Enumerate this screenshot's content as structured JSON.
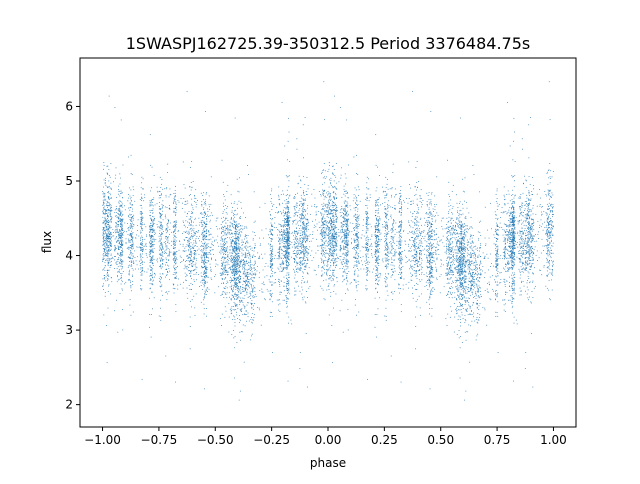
{
  "chart_data": {
    "type": "scatter",
    "title": "1SWASPJ162725.39-350312.5 Period 3376484.75s",
    "xlabel": "phase",
    "ylabel": "flux",
    "xlim": [
      -1.1,
      1.1
    ],
    "ylim": [
      1.7,
      6.65
    ],
    "x_ticks": [
      -1.0,
      -0.75,
      -0.5,
      -0.25,
      0.0,
      0.25,
      0.5,
      0.75,
      1.0
    ],
    "x_tick_labels": [
      "−1.00",
      "−0.75",
      "−0.50",
      "−0.25",
      "0.00",
      "0.25",
      "0.50",
      "0.75",
      "1.00"
    ],
    "y_ticks": [
      2,
      3,
      4,
      5,
      6
    ],
    "y_tick_labels": [
      "2",
      "3",
      "4",
      "5",
      "6"
    ],
    "grid": false,
    "marker_color": "#1f77b4",
    "series": [
      {
        "phase_range": [
          -1.0,
          1.0
        ],
        "flux_profile": [
          {
            "phase": -1.0,
            "flux": 4.35
          },
          {
            "phase": -0.9,
            "flux": 4.25
          },
          {
            "phase": -0.8,
            "flux": 4.2
          },
          {
            "phase": -0.7,
            "flux": 4.2
          },
          {
            "phase": -0.6,
            "flux": 4.2
          },
          {
            "phase": -0.5,
            "flux": 4.05
          },
          {
            "phase": -0.4,
            "flux": 3.95
          },
          {
            "phase": -0.35,
            "flux": 3.7
          },
          {
            "phase": -0.3,
            "flux": 3.85
          },
          {
            "phase": -0.2,
            "flux": 4.15
          },
          {
            "phase": -0.1,
            "flux": 4.25
          },
          {
            "phase": 0.0,
            "flux": 4.35
          },
          {
            "phase": 0.1,
            "flux": 4.25
          },
          {
            "phase": 0.2,
            "flux": 4.2
          },
          {
            "phase": 0.3,
            "flux": 4.2
          },
          {
            "phase": 0.4,
            "flux": 4.2
          },
          {
            "phase": 0.5,
            "flux": 4.05
          },
          {
            "phase": 0.6,
            "flux": 3.95
          },
          {
            "phase": 0.65,
            "flux": 3.7
          },
          {
            "phase": 0.7,
            "flux": 3.85
          },
          {
            "phase": 0.8,
            "flux": 4.15
          },
          {
            "phase": 0.9,
            "flux": 4.25
          },
          {
            "phase": 1.0,
            "flux": 4.35
          }
        ],
        "scatter_sd": 0.35,
        "outlier_range": [
          1.95,
          6.45
        ]
      }
    ]
  }
}
